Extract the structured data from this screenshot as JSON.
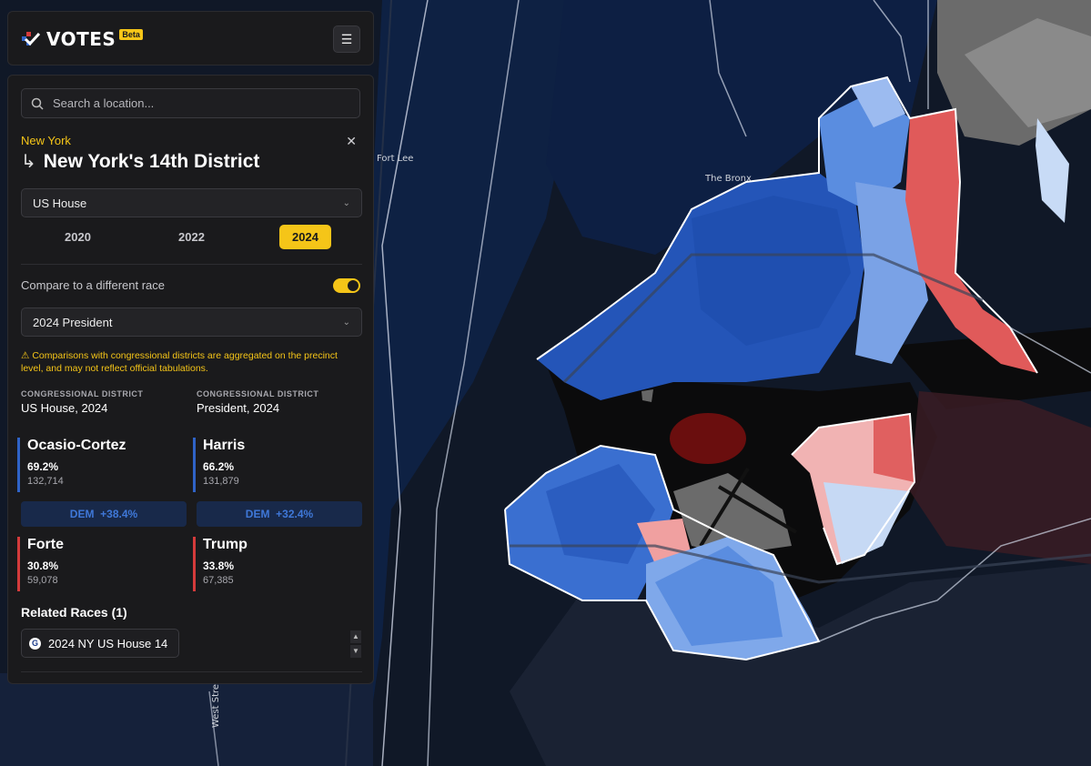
{
  "app": {
    "brand": "VOTES",
    "badge": "Beta"
  },
  "search": {
    "placeholder": "Search a location..."
  },
  "location": {
    "state": "New York",
    "district": "New York's 14th District"
  },
  "race_select": {
    "value": "US House"
  },
  "years": [
    {
      "label": "2020",
      "active": false
    },
    {
      "label": "2022",
      "active": false
    },
    {
      "label": "2024",
      "active": true
    }
  ],
  "compare": {
    "label": "Compare to a different race",
    "enabled": true,
    "race": "2024 President"
  },
  "warning": "Comparisons with congressional districts are aggregated on the precinct level, and may not reflect official tabulations.",
  "columns": [
    {
      "header": "CONGRESSIONAL DISTRICT",
      "race": "US House, 2024",
      "dem": {
        "name": "Ocasio-Cortez",
        "pct": "69.2%",
        "votes": "132,714"
      },
      "margin": {
        "party": "DEM",
        "value": "+38.4%"
      },
      "rep": {
        "name": "Forte",
        "pct": "30.8%",
        "votes": "59,078"
      }
    },
    {
      "header": "CONGRESSIONAL DISTRICT",
      "race": "President, 2024",
      "dem": {
        "name": "Harris",
        "pct": "66.2%",
        "votes": "131,879"
      },
      "margin": {
        "party": "DEM",
        "value": "+32.4%"
      },
      "rep": {
        "name": "Trump",
        "pct": "33.8%",
        "votes": "67,385"
      }
    }
  ],
  "related": {
    "title": "Related Races (1)",
    "items": [
      "2024 NY US House 14"
    ]
  },
  "map_labels": {
    "fort_lee": "Fort Lee",
    "bronx": "The Bronx",
    "west_street": "West Street"
  },
  "colors": {
    "accent": "#f5c518",
    "dem": "#2f63c7",
    "rep": "#d43b3b",
    "panel": "#1a1a1c"
  }
}
